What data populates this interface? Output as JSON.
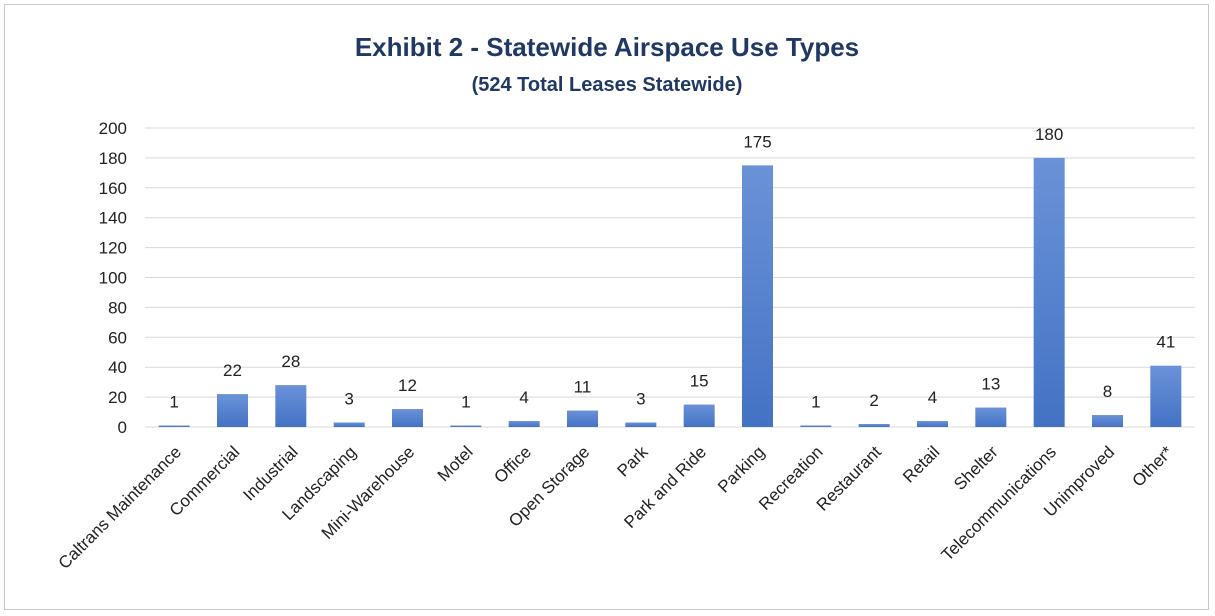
{
  "chart_data": {
    "type": "bar",
    "title": "Exhibit 2 - Statewide Airspace Use Types",
    "subtitle": "(524 Total Leases Statewide)",
    "xlabel": "",
    "ylabel": "",
    "ylim": [
      0,
      200
    ],
    "yticks": [
      0,
      20,
      40,
      60,
      80,
      100,
      120,
      140,
      160,
      180,
      200
    ],
    "grid": true,
    "legend": "none",
    "bar_color": "#4472c4",
    "bar_color_light": "#6a92d8",
    "gridline_color": "#d9d9d9",
    "categories": [
      "Caltrans Maintenance",
      "Commercial",
      "Industrial",
      "Landscaping",
      "Mini-Warehouse",
      "Motel",
      "Office",
      "Open Storage",
      "Park",
      "Park and Ride",
      "Parking",
      "Recreation",
      "Restaurant",
      "Retail",
      "Shelter",
      "Telecommunications",
      "Unimproved",
      "Other*"
    ],
    "values": [
      1,
      22,
      28,
      3,
      12,
      1,
      4,
      11,
      3,
      15,
      175,
      1,
      2,
      4,
      13,
      180,
      8,
      41
    ],
    "data_labels": [
      "1",
      "22",
      "28",
      "3",
      "12",
      "1",
      "4",
      "11",
      "3",
      "15",
      "175",
      "1",
      "2",
      "4",
      "13",
      "180",
      "8",
      "41"
    ]
  }
}
